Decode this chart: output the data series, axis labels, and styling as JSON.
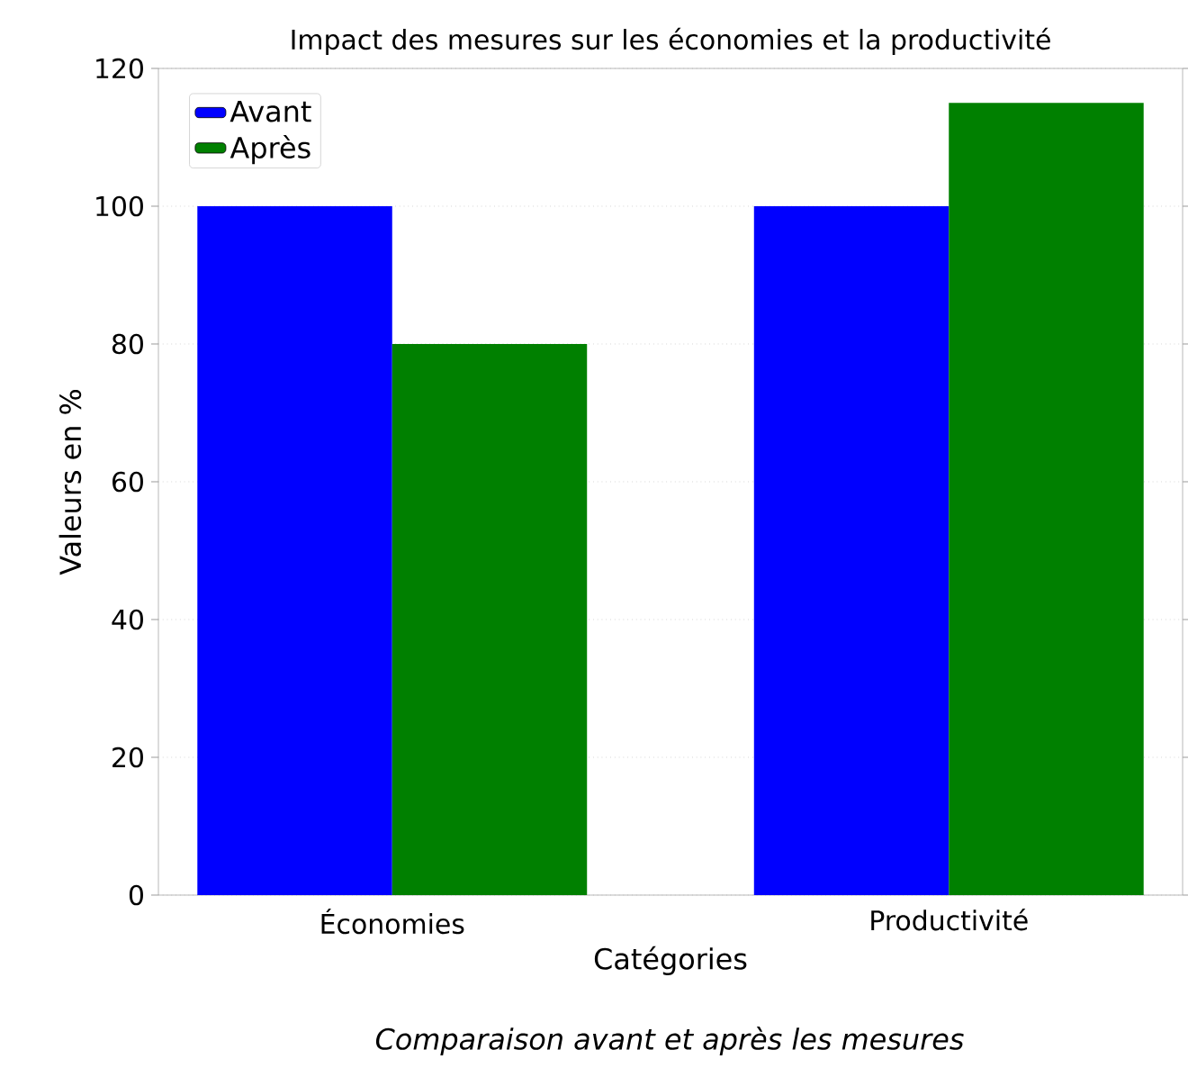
{
  "chart_data": {
    "type": "bar",
    "title": "Impact des mesures sur les économies et la productivité",
    "xlabel": "Catégories",
    "ylabel": "Valeurs en %",
    "categories": [
      "Économies",
      "Productivité"
    ],
    "series": [
      {
        "name": "Avant",
        "color": "#0000ff",
        "values": [
          100,
          100
        ]
      },
      {
        "name": "Après",
        "color": "#008000",
        "values": [
          80,
          115
        ]
      }
    ],
    "ylim": [
      0,
      120
    ],
    "yticks": [
      0,
      20,
      40,
      60,
      80,
      100,
      120
    ],
    "grid": "y",
    "legend": "top left",
    "annotations": [
      "Comparaison avant et après les mesures"
    ]
  }
}
